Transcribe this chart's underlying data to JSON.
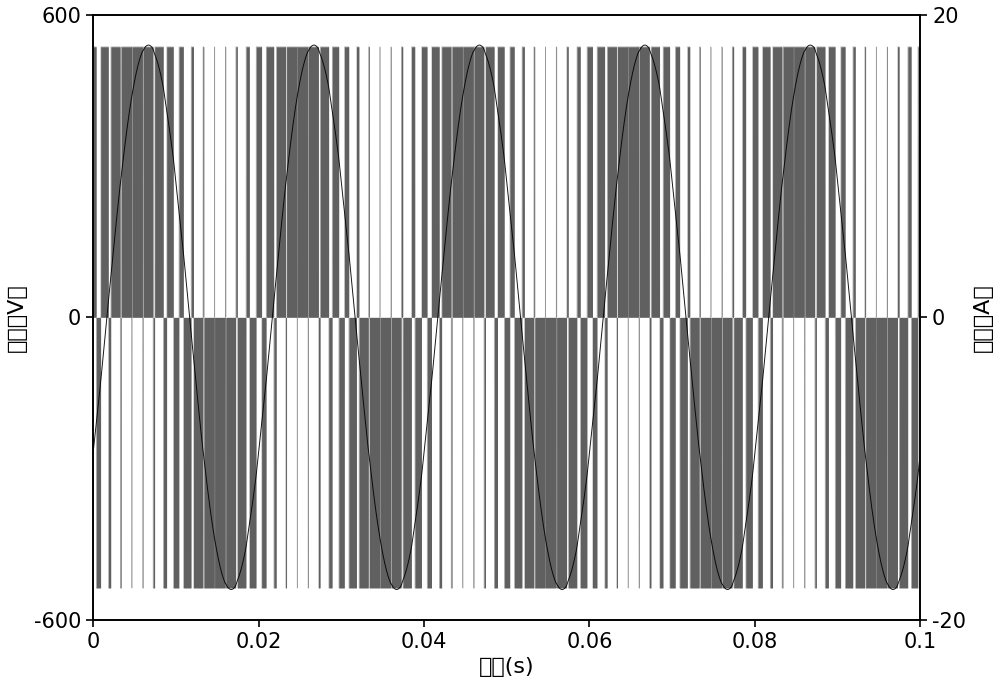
{
  "xlabel": "时间(s)",
  "ylabel_left": "电压（V）",
  "ylabel_right": "电流（A）",
  "xlim": [
    0,
    0.1
  ],
  "ylim_left": [
    -600,
    600
  ],
  "ylim_right": [
    -20,
    20
  ],
  "yticks_left": [
    -600,
    0,
    600
  ],
  "yticks_right": [
    -20,
    0,
    20
  ],
  "xticks": [
    0,
    0.02,
    0.04,
    0.06,
    0.08,
    0.1
  ],
  "voltage_amplitude": 537,
  "current_amplitude": 18,
  "fundamental_freq": 50,
  "pwm_freq": 750,
  "duration": 0.1,
  "sample_rate": 500000,
  "pwm_color": "#606060",
  "current_color": "#000000",
  "background_color": "#ffffff",
  "figsize": [
    10.0,
    6.84
  ],
  "dpi": 100,
  "font_size": 16,
  "tick_font_size": 15
}
